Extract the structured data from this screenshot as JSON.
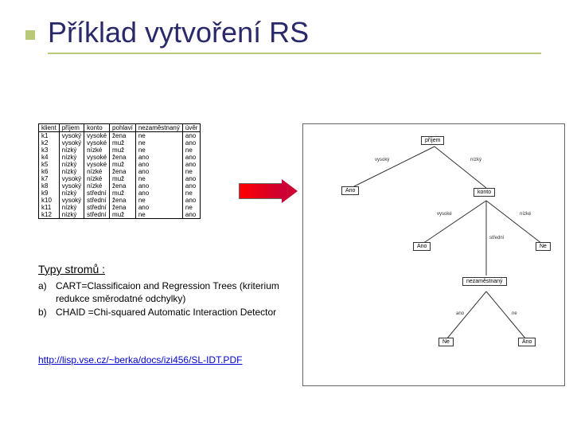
{
  "title": "Příklad vytvoření RS",
  "table": {
    "headers": [
      "klient",
      "příjem",
      "konto",
      "pohlaví",
      "nezaměstnaný",
      "úvěr"
    ],
    "rows": [
      [
        "k1",
        "vysoký",
        "vysoké",
        "žena",
        "ne",
        "ano"
      ],
      [
        "k2",
        "vysoký",
        "vysoké",
        "muž",
        "ne",
        "ano"
      ],
      [
        "k3",
        "nízký",
        "nízké",
        "muž",
        "ne",
        "ne"
      ],
      [
        "k4",
        "nízký",
        "vysoké",
        "žena",
        "ano",
        "ano"
      ],
      [
        "k5",
        "nízký",
        "vysoké",
        "muž",
        "ano",
        "ano"
      ],
      [
        "k6",
        "nízký",
        "nízké",
        "žena",
        "ano",
        "ne"
      ],
      [
        "k7",
        "vysoký",
        "nízké",
        "muž",
        "ne",
        "ano"
      ],
      [
        "k8",
        "vysoký",
        "nízké",
        "žena",
        "ano",
        "ano"
      ],
      [
        "k9",
        "nízký",
        "střední",
        "muž",
        "ano",
        "ne"
      ],
      [
        "k10",
        "vysoký",
        "střední",
        "žena",
        "ne",
        "ano"
      ],
      [
        "k11",
        "nízký",
        "střední",
        "žena",
        "ano",
        "ne"
      ],
      [
        "k12",
        "nízký",
        "střední",
        "muž",
        "ne",
        "ano"
      ]
    ]
  },
  "tree": {
    "root": "příjem",
    "root_edges": [
      "vysoký",
      "nízký"
    ],
    "left_leaf": "Ano",
    "right_node": "konto",
    "konto_edges": [
      "vysoké",
      "střední",
      "nízké"
    ],
    "konto_left_leaf": "Ano",
    "konto_right_leaf": "Ne",
    "mid_node": "nezaměstnaný",
    "mid_edges": [
      "ano",
      "ne"
    ],
    "mid_left_leaf": "Ne",
    "mid_right_leaf": "Ano"
  },
  "types": {
    "heading": "Typy stromů :",
    "items": [
      {
        "letter": "a)",
        "text": "CART=Classificaion and Regression Trees (kriterium redukce směrodatné odchylky)"
      },
      {
        "letter": "b)",
        "text": "CHAID =Chi-squared Automatic Interaction Detector"
      }
    ]
  },
  "link": "http://lisp.vse.cz/~berka/docs/izi456/SL-IDT.PDF",
  "colors": {
    "title": "#2a2a6a",
    "accent": "#b8c97a",
    "arrow": "#cc0033",
    "link": "#0000cc"
  }
}
